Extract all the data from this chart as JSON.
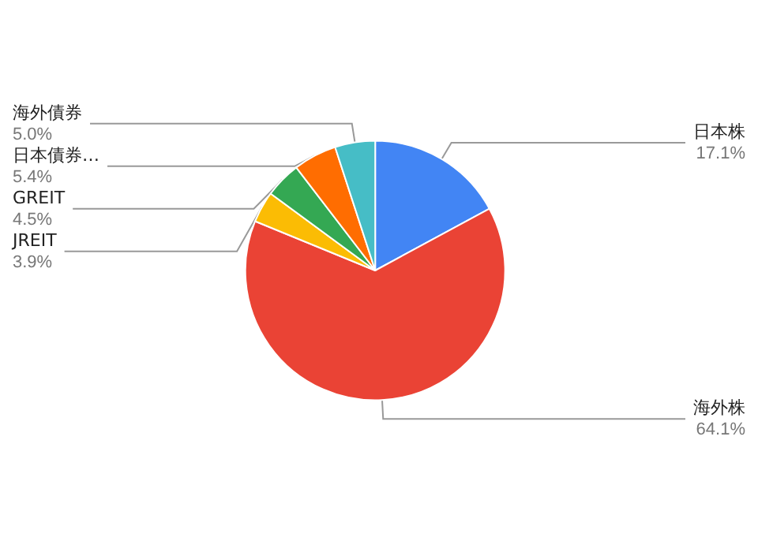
{
  "chart_data": {
    "type": "pie",
    "categories": [
      "日本株",
      "海外株",
      "JREIT",
      "GREIT",
      "日本債券…",
      "海外債券"
    ],
    "values": [
      17.1,
      64.1,
      3.9,
      4.5,
      5.4,
      5.0
    ],
    "value_labels": [
      "17.1%",
      "64.1%",
      "3.9%",
      "4.5%",
      "5.4%",
      "5.0%"
    ],
    "colors": [
      "#4285f4",
      "#ea4335",
      "#fbbc04",
      "#34a853",
      "#ff6d01",
      "#46bdc6"
    ],
    "legend": false
  }
}
